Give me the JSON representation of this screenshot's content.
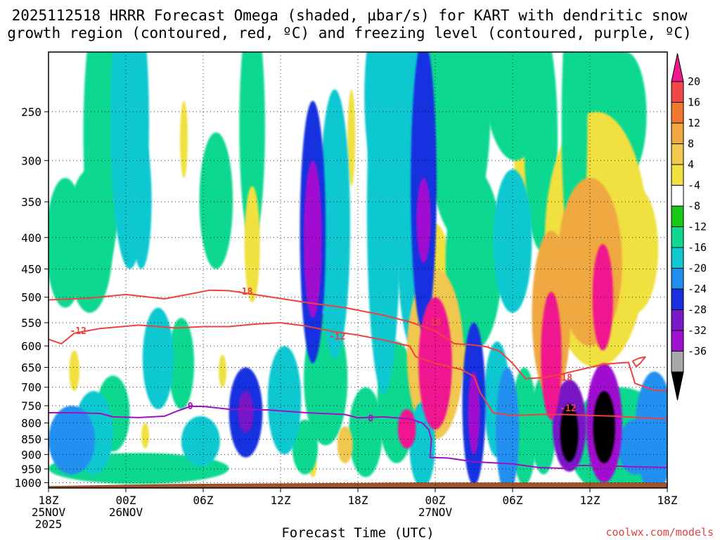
{
  "chart_data": {
    "type": "heatmap",
    "title": {
      "line1": "2025112518 HRRR Forecast Omega (shaded, µbar/s) for KART with dendritic snow",
      "line2": "growth region (contoured, red, ºC) and freezing level (contoured, purple, ºC)"
    },
    "xlabel": "Forecast Time (UTC)",
    "ylabel": "",
    "credit": "coolwx.com/models",
    "x_range_hours": [
      0,
      48
    ],
    "y_range_hpa": [
      200,
      1020
    ],
    "y_ticks": [
      250,
      300,
      350,
      400,
      450,
      500,
      550,
      600,
      650,
      700,
      750,
      800,
      850,
      900,
      950,
      1000
    ],
    "x_ticks": [
      {
        "h": 0,
        "lines": [
          "18Z",
          "25NOV",
          "2025"
        ]
      },
      {
        "h": 6,
        "lines": [
          "00Z",
          "26NOV"
        ]
      },
      {
        "h": 12,
        "lines": [
          "06Z"
        ]
      },
      {
        "h": 18,
        "lines": [
          "12Z"
        ]
      },
      {
        "h": 24,
        "lines": [
          "18Z"
        ]
      },
      {
        "h": 30,
        "lines": [
          "00Z",
          "27NOV"
        ]
      },
      {
        "h": 36,
        "lines": [
          "06Z"
        ]
      },
      {
        "h": 42,
        "lines": [
          "12Z"
        ]
      },
      {
        "h": 48,
        "lines": [
          "18Z"
        ]
      }
    ],
    "colorbar": {
      "labels": [
        "20",
        "16",
        "12",
        "8",
        "4",
        "-4",
        "-8",
        "-12",
        "-16",
        "-20",
        "-24",
        "-28",
        "-32",
        "-36"
      ],
      "colors": [
        "#f01890",
        "#f04848",
        "#f07830",
        "#f0a840",
        "#f0c850",
        "#f0e040",
        "#ffffff",
        "#18c818",
        "#10d890",
        "#10c8d0",
        "#2090f0",
        "#1830e0",
        "#7818c8",
        "#a010d0",
        "#a8a8a8",
        "#000000"
      ]
    },
    "omega_levels": [
      {
        "min": -36,
        "color": "#000000"
      },
      {
        "min": -32,
        "color": "#a8a8a8"
      },
      {
        "min": -28,
        "color": "#a010d0"
      },
      {
        "min": -24,
        "color": "#7818c8"
      },
      {
        "min": -20,
        "color": "#1830e0"
      },
      {
        "min": -16,
        "color": "#2090f0"
      },
      {
        "min": -12,
        "color": "#10c8d0"
      },
      {
        "min": -8,
        "color": "#10d890"
      },
      {
        "min": -4,
        "color": "#18c818"
      },
      {
        "min": 4,
        "color": "#f0e040"
      },
      {
        "min": 8,
        "color": "#f0c850"
      },
      {
        "min": 12,
        "color": "#f0a840"
      },
      {
        "min": 16,
        "color": "#f07830"
      },
      {
        "min": 20,
        "color": "#f04848"
      },
      {
        "min": 24,
        "color": "#f01890"
      }
    ],
    "omega_cells": [
      {
        "h": 4.2,
        "p": 310,
        "rh": 1.5,
        "rp": 150,
        "v": -8
      },
      {
        "h": 6.3,
        "p": 300,
        "rh": 1.5,
        "rp": 150,
        "v": -9
      },
      {
        "h": 7.2,
        "p": 360,
        "rh": 0.8,
        "rp": 90,
        "v": -12
      },
      {
        "h": 3.2,
        "p": 420,
        "rh": 1.8,
        "rp": 110,
        "v": -8
      },
      {
        "h": 1.3,
        "p": 420,
        "rh": 1.5,
        "rp": 100,
        "v": -7
      },
      {
        "h": 13,
        "p": 360,
        "rh": 1.3,
        "rp": 90,
        "v": -7
      },
      {
        "h": 15.8,
        "p": 290,
        "rh": 1.0,
        "rp": 120,
        "v": -6
      },
      {
        "h": 20.5,
        "p": 440,
        "rh": 1.0,
        "rp": 200,
        "v": -18
      },
      {
        "h": 20.5,
        "p": 420,
        "rh": 0.7,
        "rp": 120,
        "v": -26
      },
      {
        "h": 22.2,
        "p": 430,
        "rh": 1.2,
        "rp": 200,
        "v": -10
      },
      {
        "h": 25.6,
        "p": 210,
        "rh": 0.8,
        "rp": 60,
        "v": -10
      },
      {
        "h": 26.0,
        "p": 450,
        "rh": 1.3,
        "rp": 270,
        "v": -10
      },
      {
        "h": 27.0,
        "p": 250,
        "rh": 2.5,
        "rp": 120,
        "v": -10
      },
      {
        "h": 28.2,
        "p": 420,
        "rh": 1.2,
        "rp": 180,
        "v": -9
      },
      {
        "h": 29.1,
        "p": 380,
        "rh": 1.0,
        "rp": 190,
        "v": -19
      },
      {
        "h": 29.1,
        "p": 380,
        "rh": 0.55,
        "rp": 60,
        "v": -26
      },
      {
        "h": 31.8,
        "p": 250,
        "rh": 2.5,
        "rp": 150,
        "v": -8
      },
      {
        "h": 33.0,
        "p": 460,
        "rh": 2.2,
        "rp": 150,
        "v": -8
      },
      {
        "h": 36.2,
        "p": 210,
        "rh": 2.5,
        "rp": 90,
        "v": -8
      },
      {
        "h": 36.0,
        "p": 420,
        "rh": 1.5,
        "rp": 110,
        "v": -9
      },
      {
        "h": 38.2,
        "p": 300,
        "rh": 1.3,
        "rp": 120,
        "v": -7
      },
      {
        "h": 40.8,
        "p": 300,
        "rh": 1.0,
        "rp": 150,
        "v": -8
      },
      {
        "h": 43.0,
        "p": 240,
        "rh": 1.8,
        "rp": 110,
        "v": -7
      },
      {
        "h": 44.8,
        "p": 260,
        "rh": 1.6,
        "rp": 60,
        "v": -6
      },
      {
        "h": 1.8,
        "p": 860,
        "rh": 1.8,
        "rp": 110,
        "v": -14
      },
      {
        "h": 3.5,
        "p": 840,
        "rh": 1.5,
        "rp": 130,
        "v": -10
      },
      {
        "h": 5.0,
        "p": 780,
        "rh": 1.3,
        "rp": 110,
        "v": -7
      },
      {
        "h": 8.5,
        "p": 640,
        "rh": 1.2,
        "rp": 120,
        "v": -10
      },
      {
        "h": 10.3,
        "p": 650,
        "rh": 1.0,
        "rp": 110,
        "v": -7
      },
      {
        "h": 11.8,
        "p": 860,
        "rh": 1.5,
        "rp": 80,
        "v": -9
      },
      {
        "h": 15.3,
        "p": 780,
        "rh": 1.3,
        "rp": 130,
        "v": -17
      },
      {
        "h": 15.3,
        "p": 770,
        "rh": 0.6,
        "rp": 60,
        "v": -24
      },
      {
        "h": 18.3,
        "p": 750,
        "rh": 1.3,
        "rp": 150,
        "v": -9
      },
      {
        "h": 19.9,
        "p": 880,
        "rh": 1.0,
        "rp": 90,
        "v": -8
      },
      {
        "h": 21.5,
        "p": 700,
        "rh": 1.7,
        "rp": 170,
        "v": -8
      },
      {
        "h": 24.6,
        "p": 840,
        "rh": 1.3,
        "rp": 140,
        "v": -8
      },
      {
        "h": 27.0,
        "p": 760,
        "rh": 1.5,
        "rp": 170,
        "v": -8
      },
      {
        "h": 29.0,
        "p": 880,
        "rh": 1.0,
        "rp": 140,
        "v": -12
      },
      {
        "h": 33.0,
        "p": 780,
        "rh": 0.9,
        "rp": 230,
        "v": -18
      },
      {
        "h": 33.0,
        "p": 780,
        "rh": 0.45,
        "rp": 120,
        "v": -26
      },
      {
        "h": 34.8,
        "p": 750,
        "rh": 1.0,
        "rp": 160,
        "v": -10
      },
      {
        "h": 35.6,
        "p": 850,
        "rh": 0.9,
        "rp": 200,
        "v": -13
      },
      {
        "h": 36.9,
        "p": 830,
        "rh": 1.0,
        "rp": 180,
        "v": -8
      },
      {
        "h": 38.4,
        "p": 820,
        "rh": 1.0,
        "rp": 150,
        "v": -8
      },
      {
        "h": 40.4,
        "p": 820,
        "rh": 1.3,
        "rp": 140,
        "v": -24
      },
      {
        "h": 40.4,
        "p": 835,
        "rh": 0.7,
        "rp": 90,
        "v": -38
      },
      {
        "h": 43.1,
        "p": 820,
        "rh": 1.4,
        "rp": 180,
        "v": -26
      },
      {
        "h": 43.1,
        "p": 820,
        "rh": 0.85,
        "rp": 110,
        "v": -40
      },
      {
        "h": 45.5,
        "p": 880,
        "rh": 1.3,
        "rp": 90,
        "v": -14
      },
      {
        "h": 47.0,
        "p": 850,
        "rh": 1.5,
        "rp": 190,
        "v": -13
      },
      {
        "h": 44.3,
        "p": 880,
        "rh": 4.0,
        "rp": 180,
        "v": -6
      },
      {
        "h": 7.0,
        "p": 950,
        "rh": 7.0,
        "rp": 55,
        "v": -5
      },
      {
        "h": 30.0,
        "p": 480,
        "rh": 1.2,
        "rp": 100,
        "v": 6
      },
      {
        "h": 30.0,
        "p": 650,
        "rh": 2.2,
        "rp": 200,
        "v": 10
      },
      {
        "h": 30.0,
        "p": 660,
        "rh": 1.3,
        "rp": 160,
        "v": 26
      },
      {
        "h": 27.8,
        "p": 820,
        "rh": 0.7,
        "rp": 60,
        "v": 26
      },
      {
        "h": 39.0,
        "p": 560,
        "rh": 1.5,
        "rp": 170,
        "v": 12
      },
      {
        "h": 39.0,
        "p": 640,
        "rh": 0.8,
        "rp": 150,
        "v": 26
      },
      {
        "h": 42.5,
        "p": 450,
        "rh": 4.0,
        "rp": 200,
        "v": 7
      },
      {
        "h": 42.0,
        "p": 460,
        "rh": 2.5,
        "rp": 140,
        "v": 12
      },
      {
        "h": 43.0,
        "p": 510,
        "rh": 0.8,
        "rp": 100,
        "v": 26
      },
      {
        "h": 45.5,
        "p": 430,
        "rh": 1.8,
        "rp": 100,
        "v": 7
      },
      {
        "h": 32.0,
        "p": 580,
        "rh": 1.5,
        "rp": 90,
        "v": 5
      },
      {
        "h": 38.8,
        "p": 500,
        "rh": 1.0,
        "rp": 80,
        "v": 15
      },
      {
        "h": 15.8,
        "p": 420,
        "rh": 0.6,
        "rp": 90,
        "v": 6
      },
      {
        "h": 10.5,
        "p": 280,
        "rh": 0.3,
        "rp": 40,
        "v": 5
      },
      {
        "h": 23.5,
        "p": 280,
        "rh": 0.3,
        "rp": 50,
        "v": 5
      },
      {
        "h": 2.0,
        "p": 660,
        "rh": 0.4,
        "rp": 50,
        "v": 5
      },
      {
        "h": 7.5,
        "p": 840,
        "rh": 0.3,
        "rp": 40,
        "v": 5
      },
      {
        "h": 13.5,
        "p": 660,
        "rh": 0.3,
        "rp": 40,
        "v": 5
      },
      {
        "h": 23.0,
        "p": 870,
        "rh": 0.6,
        "rp": 60,
        "v": 10
      },
      {
        "h": 20.5,
        "p": 940,
        "rh": 0.3,
        "rp": 40,
        "v": 5
      },
      {
        "h": 36.8,
        "p": 300,
        "rh": 0.7,
        "rp": 130,
        "v": 5
      },
      {
        "h": 26.0,
        "p": 290,
        "rh": 0.3,
        "rp": 50,
        "v": 5
      }
    ],
    "terrain": {
      "color": "#a0522d",
      "surface_hpa": 1010
    },
    "dgz_contours": [
      {
        "label": "-18",
        "color": "#f04040",
        "label_at": [
          [
            15.2,
            490
          ],
          [
            29.8,
            550
          ],
          [
            40.0,
            676
          ]
        ],
        "points": [
          [
            0,
            505
          ],
          [
            3,
            502
          ],
          [
            6,
            495
          ],
          [
            9,
            503
          ],
          [
            11,
            494
          ],
          [
            12.5,
            487
          ],
          [
            14,
            488
          ],
          [
            16,
            495
          ],
          [
            20,
            510
          ],
          [
            23,
            520
          ],
          [
            26,
            535
          ],
          [
            28,
            548
          ],
          [
            30,
            567
          ],
          [
            31.5,
            595
          ],
          [
            33,
            598
          ],
          [
            34,
            602
          ],
          [
            35,
            612
          ],
          [
            36,
            640
          ],
          [
            37,
            678
          ],
          [
            38.5,
            675
          ],
          [
            40,
            665
          ],
          [
            42,
            650
          ],
          [
            43,
            643
          ],
          [
            44,
            640
          ],
          [
            45,
            638
          ],
          [
            45.5,
            690
          ],
          [
            47,
            708
          ],
          [
            48,
            710
          ]
        ]
      },
      {
        "label": "-12",
        "color": "#f04040",
        "label_at": [
          [
            2.3,
            568
          ],
          [
            22.4,
            580
          ],
          [
            40.3,
            758
          ]
        ],
        "points": [
          [
            0,
            585
          ],
          [
            1,
            595
          ],
          [
            2,
            572
          ],
          [
            4,
            562
          ],
          [
            7,
            555
          ],
          [
            10,
            561
          ],
          [
            12,
            558
          ],
          [
            14,
            558
          ],
          [
            16,
            553
          ],
          [
            18,
            550
          ],
          [
            20,
            557
          ],
          [
            22,
            568
          ],
          [
            24,
            576
          ],
          [
            26,
            587
          ],
          [
            28,
            600
          ],
          [
            28.5,
            625
          ],
          [
            30,
            640
          ],
          [
            32,
            655
          ],
          [
            33,
            672
          ],
          [
            33.5,
            715
          ],
          [
            34.5,
            770
          ],
          [
            36,
            778
          ],
          [
            38,
            775
          ],
          [
            40,
            775
          ],
          [
            42,
            778
          ],
          [
            44,
            780
          ],
          [
            46,
            785
          ],
          [
            48,
            788
          ]
        ]
      },
      {
        "points": [
          [
            45.3,
            635
          ],
          [
            45.8,
            628
          ],
          [
            46.3,
            625
          ],
          [
            45.9,
            640
          ],
          [
            45.6,
            648
          ],
          [
            45.3,
            635
          ]
        ],
        "color": "#f04040",
        "label": ""
      }
    ],
    "freezing_contour": {
      "label": "0",
      "color": "#a010c0",
      "label_at": [
        [
          11.0,
          752
        ],
        [
          25.0,
          787
        ]
      ],
      "points": [
        [
          0,
          770
        ],
        [
          2,
          770
        ],
        [
          4,
          772
        ],
        [
          5,
          782
        ],
        [
          7,
          784
        ],
        [
          9,
          780
        ],
        [
          10,
          765
        ],
        [
          11,
          752
        ],
        [
          12,
          752
        ],
        [
          14,
          760
        ],
        [
          17,
          762
        ],
        [
          20,
          770
        ],
        [
          23,
          775
        ],
        [
          24,
          785
        ],
        [
          26,
          782
        ],
        [
          28,
          788
        ],
        [
          29,
          800
        ],
        [
          29.5,
          820
        ],
        [
          29.7,
          850
        ],
        [
          29.6,
          910
        ],
        [
          31,
          912
        ],
        [
          33,
          925
        ],
        [
          36,
          932
        ],
        [
          38,
          945
        ],
        [
          40,
          948
        ],
        [
          41,
          938
        ],
        [
          43,
          937
        ],
        [
          45,
          942
        ],
        [
          48,
          945
        ]
      ]
    }
  }
}
